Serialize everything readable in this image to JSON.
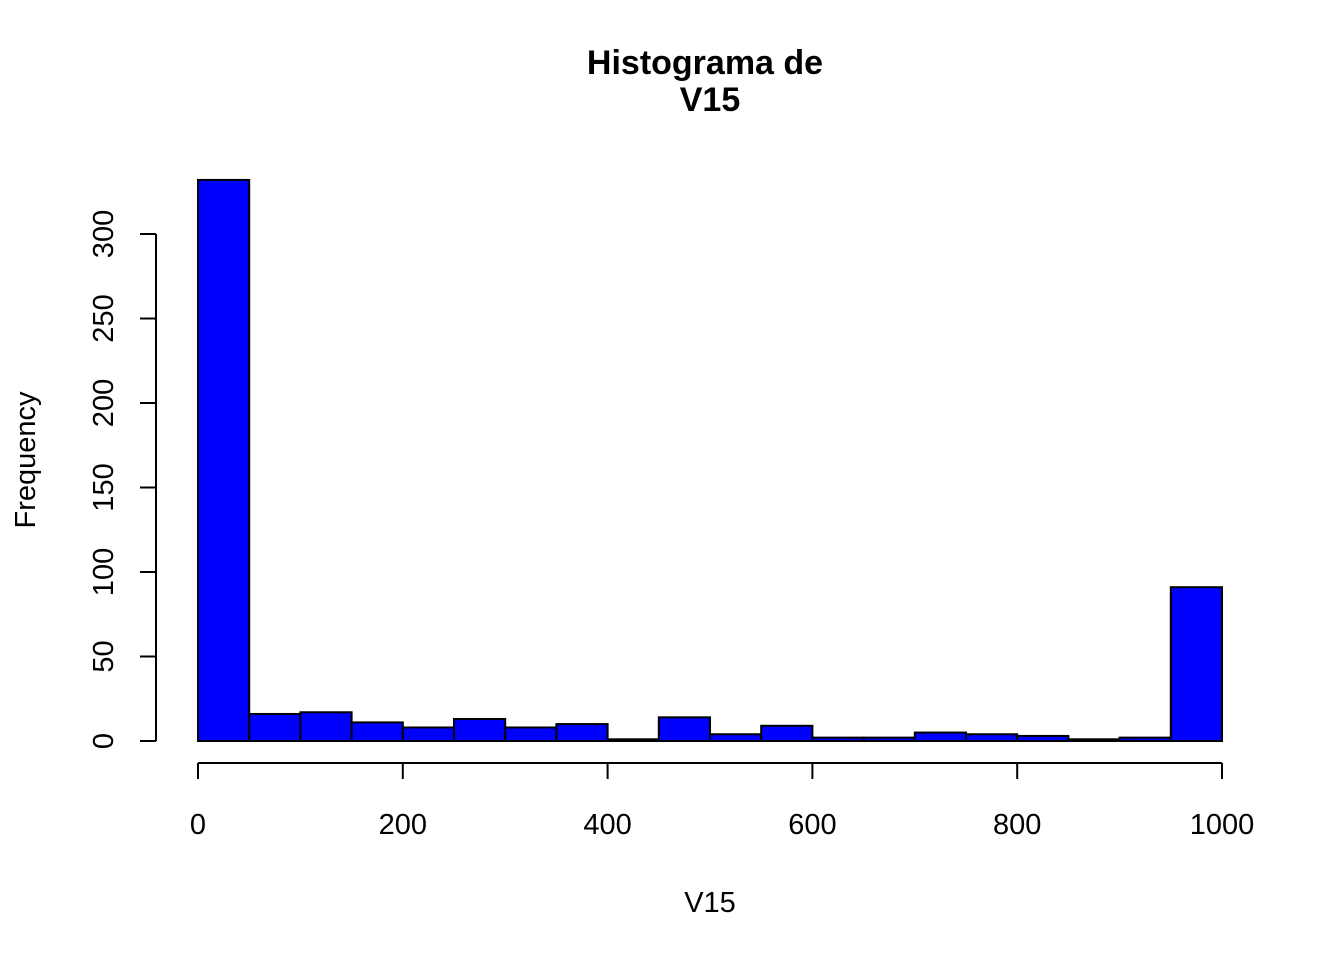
{
  "chart_data": {
    "type": "bar",
    "title": "Histograma de\nV15",
    "title_lines": [
      "Histograma de",
      "V15"
    ],
    "xlabel": "V15",
    "ylabel": "Frequency",
    "bar_color": "#0000ff",
    "bins": [
      {
        "from": 0,
        "to": 50,
        "count": 332
      },
      {
        "from": 50,
        "to": 100,
        "count": 16
      },
      {
        "from": 100,
        "to": 150,
        "count": 17
      },
      {
        "from": 150,
        "to": 200,
        "count": 11
      },
      {
        "from": 200,
        "to": 250,
        "count": 8
      },
      {
        "from": 250,
        "to": 300,
        "count": 13
      },
      {
        "from": 300,
        "to": 350,
        "count": 8
      },
      {
        "from": 350,
        "to": 400,
        "count": 10
      },
      {
        "from": 400,
        "to": 450,
        "count": 1
      },
      {
        "from": 450,
        "to": 500,
        "count": 14
      },
      {
        "from": 500,
        "to": 550,
        "count": 4
      },
      {
        "from": 550,
        "to": 600,
        "count": 9
      },
      {
        "from": 600,
        "to": 650,
        "count": 2
      },
      {
        "from": 650,
        "to": 700,
        "count": 2
      },
      {
        "from": 700,
        "to": 750,
        "count": 5
      },
      {
        "from": 750,
        "to": 800,
        "count": 4
      },
      {
        "from": 800,
        "to": 850,
        "count": 3
      },
      {
        "from": 850,
        "to": 900,
        "count": 1
      },
      {
        "from": 900,
        "to": 950,
        "count": 2
      },
      {
        "from": 950,
        "to": 1000,
        "count": 91
      }
    ],
    "xlim": [
      0,
      1000
    ],
    "ylim": [
      0,
      332
    ],
    "xticks": [
      0,
      200,
      400,
      600,
      800,
      1000
    ],
    "yticks": [
      0,
      50,
      100,
      150,
      200,
      250,
      300
    ],
    "grid": false,
    "legend": "none"
  }
}
